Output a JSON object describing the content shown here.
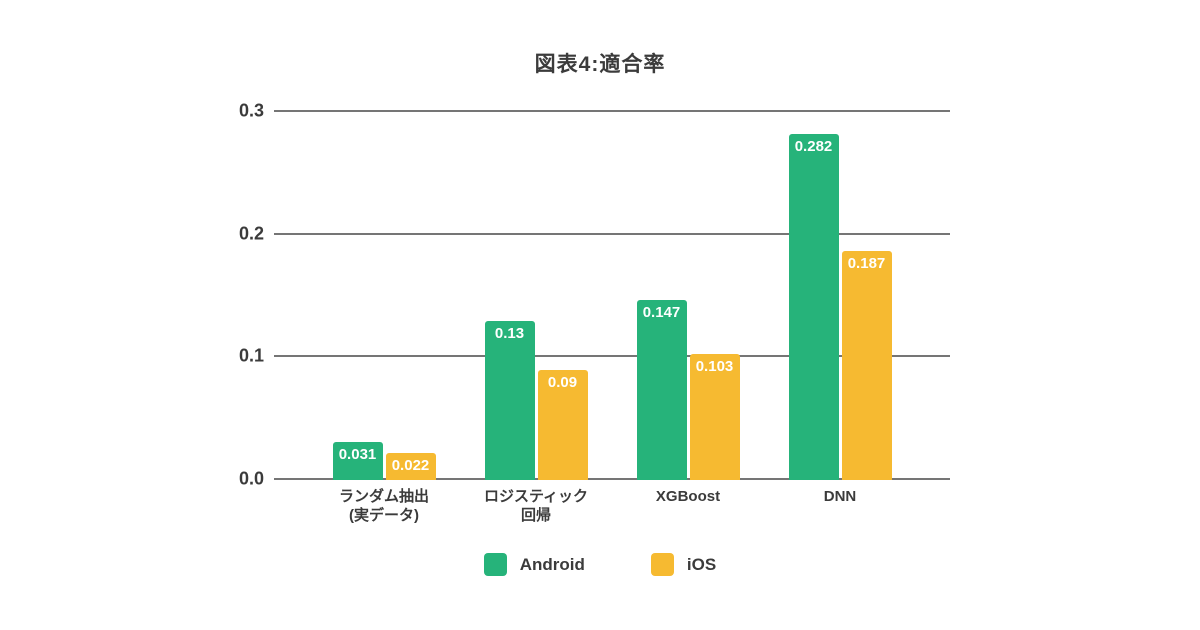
{
  "title": "図表4:適合率",
  "colors": {
    "android": "#26B37A",
    "ios": "#F6BA31",
    "grid": "#757575",
    "text": "#3B3B3B",
    "value_label": "#FFFFFF",
    "background": "#FFFFFF"
  },
  "chart_data": {
    "type": "bar",
    "title": "図表4:適合率",
    "categories": [
      "ランダム抽出\n(実データ)",
      "ロジスティック\n回帰",
      "XGBoost",
      "DNN"
    ],
    "series": [
      {
        "name": "Android",
        "color": "#26B37A",
        "values": [
          0.031,
          0.13,
          0.147,
          0.282
        ],
        "labels": [
          "0.031",
          "0.13",
          "0.147",
          "0.282"
        ]
      },
      {
        "name": "iOS",
        "color": "#F6BA31",
        "values": [
          0.022,
          0.09,
          0.103,
          0.187
        ],
        "labels": [
          "0.022",
          "0.09",
          "0.103",
          "0.187"
        ]
      }
    ],
    "xlabel": "",
    "ylabel": "",
    "ylim": [
      0,
      0.3
    ],
    "yticks": [
      {
        "label": "0.3",
        "value": 0.3
      },
      {
        "label": "0.2",
        "value": 0.2
      },
      {
        "label": "0.1",
        "value": 0.1
      },
      {
        "label": "0.0",
        "value": 0.0
      }
    ],
    "grid": true,
    "legend_position": "bottom",
    "value_labels_shown": true
  },
  "legend": {
    "items": [
      {
        "label": "Android",
        "color": "#26B37A"
      },
      {
        "label": "iOS",
        "color": "#F6BA31"
      }
    ]
  }
}
